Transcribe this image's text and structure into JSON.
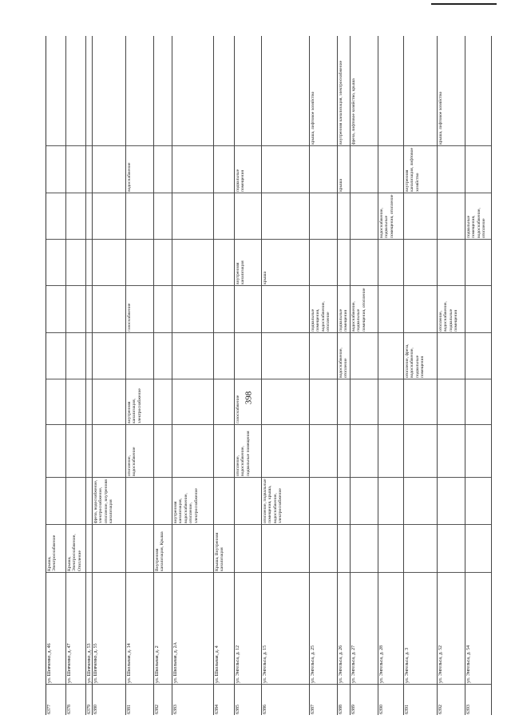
{
  "page_number": "398",
  "rows": [
    {
      "number": "6377",
      "address": "ул. Шевченко, д. 46",
      "cells": [
        "Крыша, Электроснабжение",
        "",
        "",
        "",
        "",
        "",
        "",
        "",
        "",
        ""
      ]
    },
    {
      "number": "6378",
      "address": "ул. Шевченко, д. 47",
      "cells": [
        "Крыша, Электроснабжение, Отопление",
        "",
        "",
        "",
        "",
        "",
        "",
        "",
        "",
        ""
      ]
    },
    {
      "number": "6379",
      "address": "ул. Шевченко, д. 53",
      "cells": [
        "",
        "",
        "",
        "",
        "",
        "",
        "",
        "",
        "",
        ""
      ]
    },
    {
      "number": "6380",
      "address": "ул. Шевченко, д. 55",
      "cells": [
        "",
        "фреза, водоснабжение, электроснабжение, отопление, внутренняя канализация",
        "",
        "",
        "",
        "",
        "",
        "",
        "",
        ""
      ]
    },
    {
      "number": "6381",
      "address": "ул. Школьная, д. 14",
      "cells": [
        "",
        "",
        "отопление, водоснабжение",
        "внутренняя канализация, электроснабжение",
        "",
        "газоснабжение",
        "",
        "",
        "водоснабжение",
        ""
      ]
    },
    {
      "number": "6382",
      "address": "ул. Школьная, д. 2",
      "cells": [
        "Внутренняя канализация, Крыша",
        "",
        "",
        "",
        "",
        "",
        "",
        "",
        "",
        ""
      ]
    },
    {
      "number": "6383",
      "address": "ул. Школьная, д. 2А",
      "cells": [
        "",
        "внутренняя канализация, водоснабжение, отопление, электроснабжение",
        "",
        "",
        "",
        "",
        "",
        "",
        "",
        ""
      ]
    },
    {
      "number": "6384",
      "address": "ул. Школьная, д. 4",
      "cells": [
        "Крыша, Внутренняя канализация",
        "",
        "",
        "",
        "",
        "",
        "",
        "",
        "",
        ""
      ]
    },
    {
      "number": "6385",
      "address": "ул. Энгельса, д. 12",
      "cells": [
        "",
        "",
        "отопление, водоснабжение, подвальные помещения",
        "газоснабжение",
        "",
        "",
        "внутренняя канализация",
        "",
        "подвальные помещения",
        ""
      ]
    },
    {
      "number": "6386",
      "address": "ул. Энгельса, д. 15",
      "cells": [
        "",
        "отопление, подвальные помещения, крыша, водоснабжение, электроснабжение",
        "",
        "",
        "",
        "",
        "крыша",
        "",
        "",
        ""
      ]
    },
    {
      "number": "6387",
      "address": "ул. Энгельса, д. 25",
      "cells": [
        "",
        "",
        "",
        "",
        "",
        "подвальные помещения, водоснабжение, отопление",
        "",
        "",
        "",
        "крыша, лифтовое хозяйство"
      ]
    },
    {
      "number": "6388",
      "address": "ул. Энгельса, д. 26",
      "cells": [
        "",
        "",
        "",
        "",
        "водоснабжение, отопление",
        "подвальные помещения",
        "",
        "",
        "крыша",
        "внутренняя канализация, электроснабжение"
      ]
    },
    {
      "number": "6389",
      "address": "ул. Энгельса, д. 27",
      "cells": [
        "",
        "",
        "",
        "",
        "",
        "водоснабжение, подвальные помещения, отопление",
        "",
        "",
        "",
        "фреза, лифтовое хозяйство, крыша"
      ]
    },
    {
      "number": "6390",
      "address": "ул. Энгельса, д. 28",
      "cells": [
        "",
        "",
        "",
        "",
        "",
        "",
        "",
        "водоснабжение, подвальные помещения, отопление",
        "",
        ""
      ]
    },
    {
      "number": "6391",
      "address": "ул. Энгельса, д. 3",
      "cells": [
        "",
        "",
        "",
        "",
        "отопление, фреза, водоснабжение, подвальные помещения",
        "",
        "",
        "",
        "внутренняя канализация, лифтовое хозяйство",
        ""
      ]
    },
    {
      "number": "6392",
      "address": "ул. Энгельса, д. 52",
      "cells": [
        "",
        "",
        "",
        "",
        "",
        "отопление, водоснабжение, подвальные помещения",
        "",
        "",
        "",
        "крыша, лифтовое хозяйство"
      ]
    },
    {
      "number": "6393",
      "address": "ул. Энгельса, д. 54",
      "cells": [
        "",
        "",
        "",
        "",
        "",
        "",
        "",
        "подвальные помещения, водоснабжение, отопление",
        "",
        ""
      ]
    }
  ]
}
